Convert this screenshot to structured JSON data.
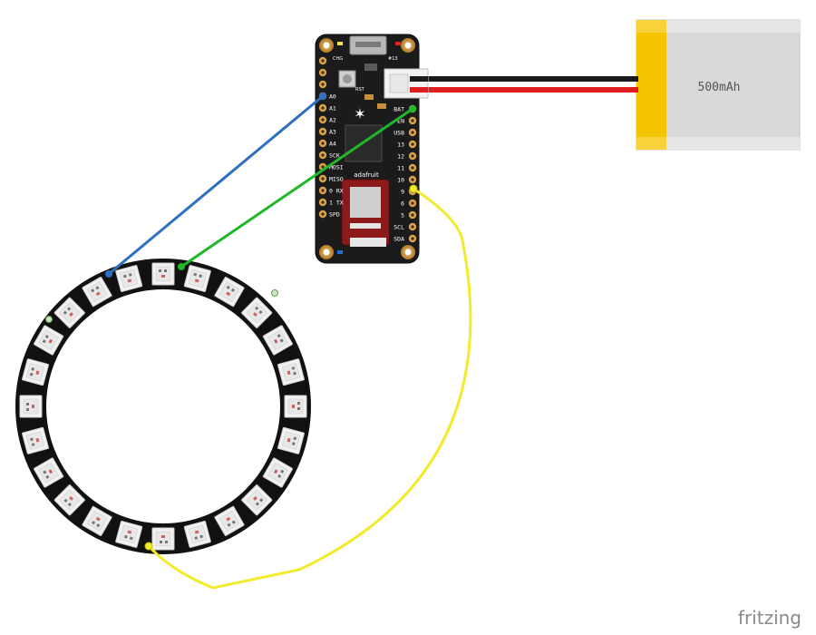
{
  "battery": {
    "capacity_label": "500mAh"
  },
  "board": {
    "brand": "adafruit",
    "left_pins": [
      "A0",
      "A1",
      "A2",
      "A3",
      "A4",
      "SCK",
      "MOSI",
      "MISO",
      "0 RX",
      "1 TX",
      "SPD"
    ],
    "right_pins": [
      "BAT",
      "EN",
      "USB",
      "13",
      "12",
      "11",
      "10",
      "9",
      "6",
      "5",
      "SCL",
      "SDA"
    ],
    "top_labels": [
      "CHG",
      "#13",
      "RST"
    ]
  },
  "ring": {
    "pixel_count": 24
  },
  "watermark": "fritzing",
  "colors": {
    "wire_blue": "#2f6fc0",
    "wire_green": "#1fb82a",
    "wire_yellow": "#f2ea2a",
    "wire_red": "#e01e1e",
    "wire_black": "#1a1a1a",
    "battery_body": "#d9d9d9",
    "battery_cap": "#f5c400",
    "board_body": "#1b1b1b",
    "pad_gold": "#d9a24a",
    "ring_body": "#111111"
  }
}
